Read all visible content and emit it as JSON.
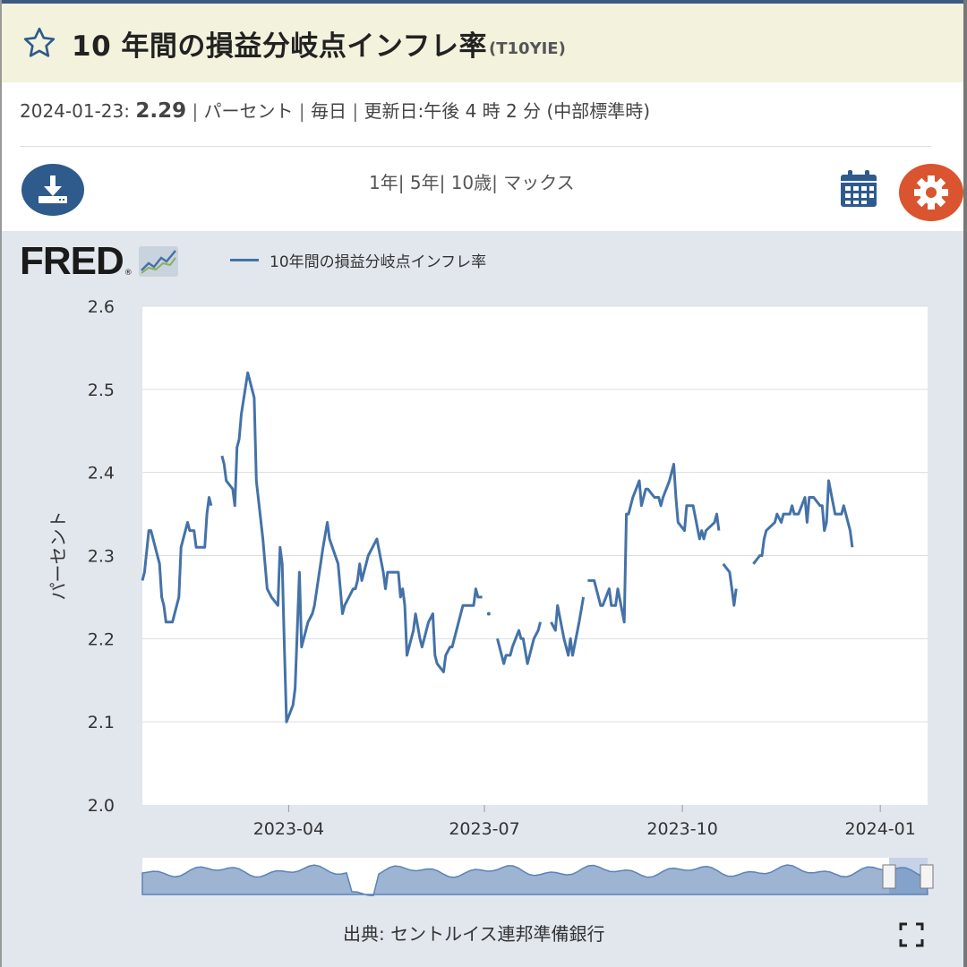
{
  "header": {
    "title": "10 年間の損益分岐点インフレ率",
    "series_code": "(T10YIE)"
  },
  "meta": {
    "date": "2024-01-23:",
    "value": "2.29",
    "units": "パーセント",
    "frequency": "毎日",
    "updated": "更新日:午後 4 時 2 分 (中部標準時)"
  },
  "toolbar": {
    "range_1y": "1年",
    "range_5y": "5年",
    "range_10y": "10歳",
    "range_max": "マックス"
  },
  "logo": {
    "text": "FRED",
    "reg": "®"
  },
  "source": "出典: セントルイス連邦準備銀行",
  "colors": {
    "line": "#4472a8",
    "accent": "#2e5a8c",
    "settings": "#d9542f",
    "panel": "#e2e7ee"
  },
  "icons": [
    "star-icon",
    "download-icon",
    "calendar-icon",
    "gear-icon",
    "fullscreen-icon"
  ],
  "chart_data": {
    "type": "line",
    "title": "",
    "xlabel": "",
    "ylabel": "パーセント",
    "ylim": [
      2.0,
      2.6
    ],
    "yticks": [
      "2.0",
      "2.1",
      "2.2",
      "2.3",
      "2.4",
      "2.5",
      "2.6"
    ],
    "xticks": [
      {
        "label": "2023-04",
        "date": "2023-04-01"
      },
      {
        "label": "2023-07",
        "date": "2023-07-01"
      },
      {
        "label": "2023-10",
        "date": "2023-10-01"
      },
      {
        "label": "2024-01",
        "date": "2024-01-01"
      }
    ],
    "xlim": [
      "2023-01-23",
      "2024-01-23"
    ],
    "grid": true,
    "legend": "top-left",
    "series": [
      {
        "name": "10年間の損益分岐点インフレ率",
        "segments": [
          [
            [
              "2023-01-23",
              2.27
            ],
            [
              "2023-01-24",
              2.28
            ],
            [
              "2023-01-26",
              2.33
            ],
            [
              "2023-01-27",
              2.33
            ],
            [
              "2023-01-31",
              2.29
            ],
            [
              "2023-02-01",
              2.25
            ],
            [
              "2023-02-02",
              2.24
            ],
            [
              "2023-02-03",
              2.22
            ],
            [
              "2023-02-06",
              2.22
            ],
            [
              "2023-02-09",
              2.25
            ],
            [
              "2023-02-10",
              2.31
            ],
            [
              "2023-02-13",
              2.34
            ],
            [
              "2023-02-14",
              2.33
            ],
            [
              "2023-02-16",
              2.33
            ],
            [
              "2023-02-17",
              2.31
            ],
            [
              "2023-02-21",
              2.31
            ],
            [
              "2023-02-22",
              2.35
            ],
            [
              "2023-02-23",
              2.37
            ],
            [
              "2023-02-24",
              2.36
            ]
          ],
          [
            [
              "2023-03-01",
              2.42
            ],
            [
              "2023-03-02",
              2.41
            ],
            [
              "2023-03-03",
              2.39
            ],
            [
              "2023-03-06",
              2.38
            ],
            [
              "2023-03-07",
              2.36
            ],
            [
              "2023-03-08",
              2.43
            ],
            [
              "2023-03-09",
              2.44
            ],
            [
              "2023-03-10",
              2.47
            ],
            [
              "2023-03-13",
              2.52
            ],
            [
              "2023-03-16",
              2.49
            ],
            [
              "2023-03-17",
              2.39
            ],
            [
              "2023-03-20",
              2.32
            ],
            [
              "2023-03-22",
              2.26
            ],
            [
              "2023-03-24",
              2.25
            ],
            [
              "2023-03-27",
              2.24
            ],
            [
              "2023-03-28",
              2.31
            ],
            [
              "2023-03-29",
              2.29
            ],
            [
              "2023-03-30",
              2.19
            ],
            [
              "2023-03-31",
              2.1
            ],
            [
              "2023-04-03",
              2.12
            ],
            [
              "2023-04-04",
              2.14
            ],
            [
              "2023-04-06",
              2.28
            ],
            [
              "2023-04-07",
              2.19
            ],
            [
              "2023-04-10",
              2.22
            ],
            [
              "2023-04-12",
              2.23
            ],
            [
              "2023-04-13",
              2.24
            ],
            [
              "2023-04-17",
              2.31
            ],
            [
              "2023-04-19",
              2.34
            ],
            [
              "2023-04-20",
              2.32
            ],
            [
              "2023-04-24",
              2.29
            ],
            [
              "2023-04-25",
              2.26
            ],
            [
              "2023-04-26",
              2.23
            ],
            [
              "2023-04-27",
              2.24
            ],
            [
              "2023-05-01",
              2.26
            ],
            [
              "2023-05-02",
              2.26
            ],
            [
              "2023-05-03",
              2.27
            ],
            [
              "2023-05-04",
              2.29
            ],
            [
              "2023-05-05",
              2.27
            ],
            [
              "2023-05-08",
              2.3
            ],
            [
              "2023-05-10",
              2.31
            ],
            [
              "2023-05-12",
              2.32
            ],
            [
              "2023-05-15",
              2.28
            ],
            [
              "2023-05-16",
              2.26
            ],
            [
              "2023-05-17",
              2.28
            ],
            [
              "2023-05-19",
              2.28
            ],
            [
              "2023-05-22",
              2.28
            ],
            [
              "2023-05-23",
              2.25
            ],
            [
              "2023-05-24",
              2.26
            ],
            [
              "2023-05-25",
              2.24
            ],
            [
              "2023-05-26",
              2.18
            ],
            [
              "2023-05-29",
              2.21
            ],
            [
              "2023-05-30",
              2.23
            ],
            [
              "2023-06-01",
              2.2
            ],
            [
              "2023-06-02",
              2.19
            ],
            [
              "2023-06-05",
              2.22
            ],
            [
              "2023-06-07",
              2.23
            ],
            [
              "2023-06-08",
              2.18
            ],
            [
              "2023-06-09",
              2.17
            ],
            [
              "2023-06-12",
              2.16
            ],
            [
              "2023-06-13",
              2.18
            ],
            [
              "2023-06-15",
              2.19
            ],
            [
              "2023-06-16",
              2.19
            ],
            [
              "2023-06-19",
              2.22
            ],
            [
              "2023-06-21",
              2.24
            ],
            [
              "2023-06-22",
              2.24
            ],
            [
              "2023-06-23",
              2.24
            ],
            [
              "2023-06-26",
              2.24
            ],
            [
              "2023-06-27",
              2.26
            ],
            [
              "2023-06-28",
              2.25
            ],
            [
              "2023-06-30",
              2.25
            ]
          ],
          [
            [
              "2023-07-03",
              2.23
            ]
          ],
          [
            [
              "2023-07-07",
              2.2
            ],
            [
              "2023-07-10",
              2.17
            ],
            [
              "2023-07-11",
              2.18
            ],
            [
              "2023-07-13",
              2.18
            ],
            [
              "2023-07-14",
              2.19
            ],
            [
              "2023-07-17",
              2.21
            ],
            [
              "2023-07-18",
              2.2
            ],
            [
              "2023-07-19",
              2.2
            ],
            [
              "2023-07-21",
              2.17
            ],
            [
              "2023-07-24",
              2.2
            ],
            [
              "2023-07-26",
              2.21
            ],
            [
              "2023-07-27",
              2.22
            ]
          ],
          [
            [
              "2023-08-01",
              2.22
            ],
            [
              "2023-08-03",
              2.21
            ],
            [
              "2023-08-04",
              2.24
            ],
            [
              "2023-08-07",
              2.2
            ],
            [
              "2023-08-08",
              2.19
            ],
            [
              "2023-08-09",
              2.18
            ],
            [
              "2023-08-10",
              2.2
            ],
            [
              "2023-08-11",
              2.18
            ],
            [
              "2023-08-14",
              2.22
            ],
            [
              "2023-08-16",
              2.25
            ]
          ],
          [
            [
              "2023-08-18",
              2.27
            ],
            [
              "2023-08-21",
              2.27
            ],
            [
              "2023-08-23",
              2.25
            ],
            [
              "2023-08-24",
              2.24
            ],
            [
              "2023-08-25",
              2.24
            ],
            [
              "2023-08-28",
              2.26
            ],
            [
              "2023-08-29",
              2.24
            ],
            [
              "2023-08-30",
              2.24
            ],
            [
              "2023-08-31",
              2.24
            ],
            [
              "2023-09-01",
              2.26
            ],
            [
              "2023-09-04",
              2.22
            ],
            [
              "2023-09-05",
              2.35
            ],
            [
              "2023-09-06",
              2.35
            ],
            [
              "2023-09-07",
              2.36
            ],
            [
              "2023-09-08",
              2.37
            ],
            [
              "2023-09-11",
              2.39
            ],
            [
              "2023-09-12",
              2.36
            ],
            [
              "2023-09-14",
              2.38
            ],
            [
              "2023-09-15",
              2.38
            ],
            [
              "2023-09-18",
              2.37
            ],
            [
              "2023-09-20",
              2.37
            ],
            [
              "2023-09-21",
              2.36
            ],
            [
              "2023-09-22",
              2.37
            ],
            [
              "2023-09-25",
              2.39
            ],
            [
              "2023-09-27",
              2.41
            ],
            [
              "2023-09-28",
              2.37
            ],
            [
              "2023-09-29",
              2.34
            ],
            [
              "2023-10-02",
              2.33
            ],
            [
              "2023-10-03",
              2.36
            ],
            [
              "2023-10-04",
              2.36
            ],
            [
              "2023-10-05",
              2.36
            ],
            [
              "2023-10-06",
              2.36
            ],
            [
              "2023-10-09",
              2.32
            ],
            [
              "2023-10-10",
              2.33
            ],
            [
              "2023-10-11",
              2.32
            ],
            [
              "2023-10-12",
              2.33
            ],
            [
              "2023-10-16",
              2.34
            ],
            [
              "2023-10-17",
              2.35
            ],
            [
              "2023-10-18",
              2.33
            ]
          ],
          [
            [
              "2023-10-20",
              2.29
            ],
            [
              "2023-10-23",
              2.28
            ],
            [
              "2023-10-24",
              2.26
            ],
            [
              "2023-10-25",
              2.24
            ],
            [
              "2023-10-26",
              2.26
            ]
          ],
          [
            [
              "2023-11-03",
              2.29
            ],
            [
              "2023-11-06",
              2.3
            ],
            [
              "2023-11-07",
              2.3
            ],
            [
              "2023-11-08",
              2.32
            ],
            [
              "2023-11-09",
              2.33
            ],
            [
              "2023-11-13",
              2.34
            ],
            [
              "2023-11-14",
              2.35
            ],
            [
              "2023-11-16",
              2.34
            ],
            [
              "2023-11-17",
              2.35
            ],
            [
              "2023-11-20",
              2.35
            ],
            [
              "2023-11-21",
              2.36
            ],
            [
              "2023-11-22",
              2.35
            ],
            [
              "2023-11-24",
              2.35
            ],
            [
              "2023-11-27",
              2.37
            ],
            [
              "2023-11-28",
              2.34
            ],
            [
              "2023-11-29",
              2.37
            ],
            [
              "2023-11-30",
              2.37
            ],
            [
              "2023-12-01",
              2.37
            ],
            [
              "2023-12-04",
              2.36
            ],
            [
              "2023-12-05",
              2.36
            ],
            [
              "2023-12-06",
              2.33
            ],
            [
              "2023-12-07",
              2.34
            ],
            [
              "2023-12-08",
              2.39
            ],
            [
              "2023-12-11",
              2.35
            ],
            [
              "2023-12-12",
              2.35
            ],
            [
              "2023-12-13",
              2.35
            ],
            [
              "2023-12-14",
              2.35
            ],
            [
              "2023-12-15",
              2.36
            ],
            [
              "2023-12-18",
              2.33
            ],
            [
              "2023-12-19",
              2.31
            ]
          ]
        ]
      }
    ]
  }
}
